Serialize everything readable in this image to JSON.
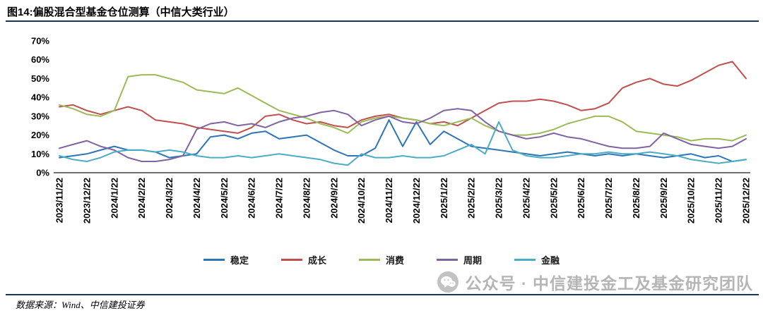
{
  "figure": {
    "title": "图14:偏股混合型基金仓位测算（中信大类行业）",
    "source": "数据来源：Wind、中信建投证券",
    "watermark": "公众号 · 中信建投金工及基金研究团队"
  },
  "chart_data": {
    "type": "line",
    "title": "偏股混合型基金仓位测算（中信大类行业）",
    "xlabel": "",
    "ylabel": "",
    "ylim": [
      0,
      70
    ],
    "y_ticks": [
      "0%",
      "10%",
      "20%",
      "30%",
      "40%",
      "50%",
      "60%",
      "70%"
    ],
    "grid": false,
    "legend_position": "bottom",
    "sampling": "values sampled semi-monthly (2 points per labeled month), percent of fund position",
    "x_labels": [
      "2023/11/22",
      "2023/12/22",
      "2024/1/22",
      "2024/2/22",
      "2024/3/22",
      "2024/4/22",
      "2024/5/22",
      "2024/6/22",
      "2024/7/22",
      "2024/8/22",
      "2024/9/22",
      "2024/10/22",
      "2024/11/22",
      "2024/12/22",
      "2025/1/22",
      "2025/2/22",
      "2025/3/22",
      "2025/4/22",
      "2025/5/22",
      "2025/6/22",
      "2025/7/22",
      "2025/8/22",
      "2025/9/22",
      "2025/10/22",
      "2025/11/22",
      "2025/12/22"
    ],
    "series": [
      {
        "name": "稳定",
        "color": "#2E75B6",
        "values": [
          8,
          9,
          10,
          12,
          14,
          12,
          12,
          11,
          8,
          9,
          10,
          19,
          20,
          18,
          21,
          22,
          18,
          19,
          20,
          16,
          12,
          9,
          9,
          13,
          28,
          14,
          27,
          15,
          22,
          18,
          14,
          13,
          12,
          11,
          10,
          9,
          10,
          11,
          10,
          9,
          10,
          9,
          10,
          9,
          8,
          9,
          10,
          8,
          9,
          6,
          7
        ]
      },
      {
        "name": "成长",
        "color": "#C0504D",
        "values": [
          35,
          36,
          33,
          31,
          33,
          35,
          33,
          28,
          27,
          26,
          24,
          23,
          22,
          21,
          24,
          30,
          31,
          28,
          26,
          27,
          25,
          24,
          28,
          30,
          31,
          29,
          28,
          26,
          27,
          25,
          29,
          33,
          37,
          38,
          38,
          39,
          38,
          36,
          33,
          34,
          37,
          45,
          48,
          50,
          47,
          46,
          49,
          53,
          57,
          59,
          50
        ]
      },
      {
        "name": "消费",
        "color": "#9BBB59",
        "values": [
          36,
          34,
          31,
          30,
          33,
          51,
          52,
          52,
          50,
          48,
          44,
          43,
          42,
          45,
          41,
          37,
          33,
          31,
          29,
          26,
          24,
          21,
          27,
          29,
          30,
          29,
          28,
          26,
          25,
          27,
          29,
          25,
          22,
          20,
          20,
          21,
          23,
          26,
          28,
          30,
          30,
          27,
          22,
          21,
          20,
          19,
          17,
          18,
          18,
          17,
          20
        ]
      },
      {
        "name": "周期",
        "color": "#8064A2",
        "values": [
          13,
          15,
          17,
          14,
          12,
          8,
          6,
          6,
          7,
          9,
          23,
          26,
          27,
          25,
          26,
          24,
          27,
          29,
          30,
          32,
          33,
          31,
          25,
          28,
          30,
          27,
          26,
          29,
          33,
          34,
          33,
          27,
          22,
          20,
          18,
          19,
          21,
          19,
          18,
          16,
          14,
          13,
          13,
          14,
          21,
          18,
          15,
          14,
          13,
          14,
          18
        ]
      },
      {
        "name": "金融",
        "color": "#4BACC6",
        "values": [
          9,
          7,
          6,
          8,
          11,
          12,
          12,
          11,
          12,
          11,
          9,
          8,
          8,
          9,
          8,
          9,
          10,
          9,
          8,
          7,
          5,
          4,
          10,
          8,
          8,
          9,
          8,
          8,
          9,
          12,
          15,
          10,
          27,
          12,
          9,
          8,
          8,
          9,
          10,
          10,
          11,
          10,
          10,
          11,
          10,
          9,
          7,
          6,
          5,
          6,
          7
        ]
      }
    ]
  }
}
